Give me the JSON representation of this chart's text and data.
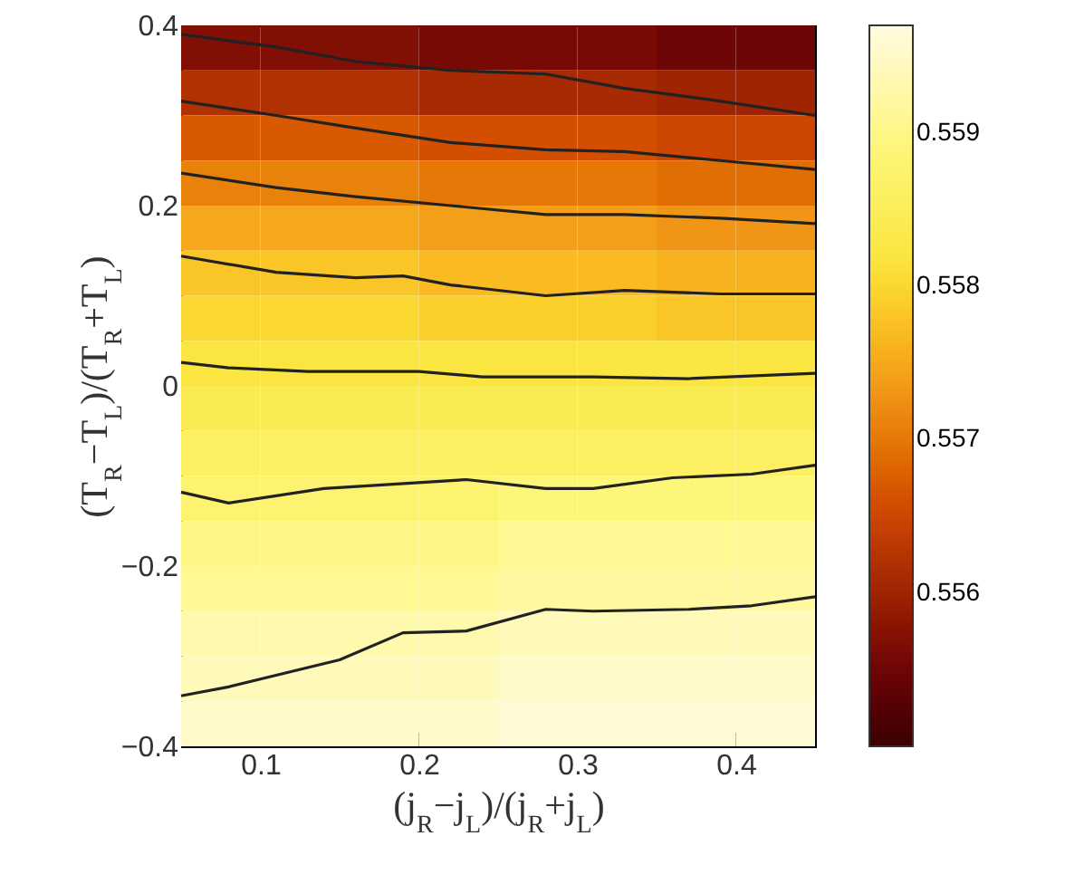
{
  "chart_data": {
    "type": "heatmap",
    "xlabel": "(j$_{R}$−j$_{L}$)/(j$_{R}$+j$_{L}$)",
    "ylabel": "(T$_{R}$−T$_{L}$)/(T$_{R}$+T$_{L}$)",
    "xlim": [
      0.05,
      0.45
    ],
    "xticks": [
      0.1,
      0.2,
      0.3,
      0.4
    ],
    "ylim": [
      -0.4,
      0.4
    ],
    "yticks": [
      {
        "value": -0.4,
        "label": "−0.4"
      },
      {
        "value": -0.2,
        "label": "−0.2"
      },
      0,
      0.2,
      0.4
    ],
    "clim": [
      0.555,
      0.5597
    ],
    "cticks": [
      0.556,
      0.557,
      0.558,
      0.559
    ],
    "cells": [
      [
        0.5557,
        0.5557,
        0.5557,
        0.5556,
        0.5556,
        0.5556,
        0.5555,
        0.5555
      ],
      [
        0.5562,
        0.5562,
        0.5562,
        0.5561,
        0.5561,
        0.5561,
        0.556,
        0.556
      ],
      [
        0.5567,
        0.5567,
        0.5567,
        0.5566,
        0.5566,
        0.5566,
        0.5565,
        0.5565
      ],
      [
        0.5571,
        0.5571,
        0.5571,
        0.557,
        0.557,
        0.557,
        0.5569,
        0.5569
      ],
      [
        0.5575,
        0.5575,
        0.5575,
        0.5574,
        0.5574,
        0.5574,
        0.5573,
        0.5573
      ],
      [
        0.5578,
        0.5578,
        0.5578,
        0.5577,
        0.5577,
        0.5577,
        0.5576,
        0.5576
      ],
      [
        0.558,
        0.558,
        0.558,
        0.5579,
        0.5579,
        0.5579,
        0.5578,
        0.5578
      ],
      [
        0.5582,
        0.5582,
        0.5582,
        0.5582,
        0.5582,
        0.5582,
        0.5582,
        0.5582
      ],
      [
        0.5584,
        0.5584,
        0.5584,
        0.5584,
        0.5584,
        0.5584,
        0.5584,
        0.5584
      ],
      [
        0.5586,
        0.5586,
        0.5586,
        0.5586,
        0.5586,
        0.5586,
        0.5586,
        0.5586
      ],
      [
        0.5588,
        0.5588,
        0.5588,
        0.5588,
        0.5589,
        0.5589,
        0.5589,
        0.5589
      ],
      [
        0.559,
        0.559,
        0.559,
        0.559,
        0.5591,
        0.5591,
        0.5591,
        0.5591
      ],
      [
        0.5591,
        0.5591,
        0.5591,
        0.5591,
        0.5592,
        0.5592,
        0.5592,
        0.5592
      ],
      [
        0.5593,
        0.5593,
        0.5593,
        0.5593,
        0.5594,
        0.5594,
        0.5594,
        0.5594
      ],
      [
        0.5594,
        0.5594,
        0.5594,
        0.5594,
        0.5595,
        0.5595,
        0.5595,
        0.5595
      ],
      [
        0.5595,
        0.5595,
        0.5595,
        0.5595,
        0.5596,
        0.5596,
        0.5596,
        0.5596
      ]
    ],
    "series": [
      {
        "type": "line",
        "color": "#222222",
        "x": [
          0.05,
          0.11,
          0.16,
          0.22,
          0.28,
          0.33,
          0.39,
          0.45
        ],
        "values": [
          0.39,
          0.376,
          0.36,
          0.35,
          0.346,
          0.33,
          0.316,
          0.3
        ]
      },
      {
        "type": "line",
        "color": "#222222",
        "x": [
          0.05,
          0.11,
          0.16,
          0.22,
          0.28,
          0.33,
          0.39,
          0.45
        ],
        "values": [
          0.316,
          0.3,
          0.286,
          0.27,
          0.262,
          0.26,
          0.25,
          0.24
        ]
      },
      {
        "type": "line",
        "color": "#222222",
        "x": [
          0.05,
          0.11,
          0.16,
          0.22,
          0.28,
          0.33,
          0.39,
          0.45
        ],
        "values": [
          0.236,
          0.22,
          0.21,
          0.2,
          0.19,
          0.19,
          0.186,
          0.18
        ]
      },
      {
        "type": "line",
        "color": "#222222",
        "x": [
          0.05,
          0.11,
          0.16,
          0.19,
          0.22,
          0.28,
          0.33,
          0.39,
          0.45
        ],
        "values": [
          0.144,
          0.126,
          0.12,
          0.122,
          0.112,
          0.1,
          0.106,
          0.102,
          0.102
        ]
      },
      {
        "type": "line",
        "color": "#222222",
        "x": [
          0.05,
          0.08,
          0.13,
          0.2,
          0.24,
          0.31,
          0.37,
          0.45
        ],
        "values": [
          0.026,
          0.02,
          0.016,
          0.016,
          0.01,
          0.01,
          0.008,
          0.014
        ]
      },
      {
        "type": "line",
        "color": "#222222",
        "x": [
          0.05,
          0.08,
          0.14,
          0.23,
          0.28,
          0.31,
          0.36,
          0.41,
          0.45
        ],
        "values": [
          -0.118,
          -0.13,
          -0.114,
          -0.104,
          -0.114,
          -0.114,
          -0.102,
          -0.098,
          -0.088
        ]
      },
      {
        "type": "line",
        "color": "#222222",
        "x": [
          0.05,
          0.08,
          0.15,
          0.19,
          0.23,
          0.28,
          0.31,
          0.37,
          0.41,
          0.45
        ],
        "values": [
          -0.344,
          -0.334,
          -0.304,
          -0.274,
          -0.272,
          -0.248,
          -0.25,
          -0.248,
          -0.244,
          -0.234
        ]
      }
    ]
  }
}
